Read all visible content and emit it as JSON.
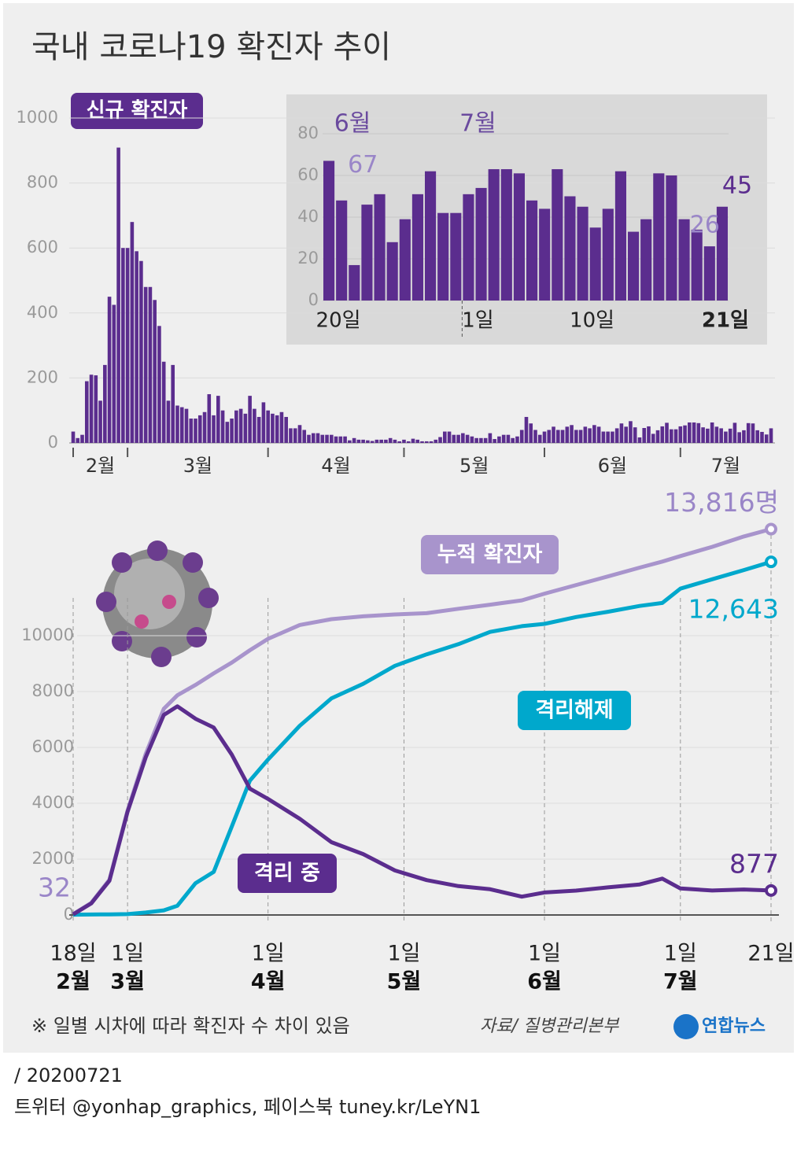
{
  "title": "국내 코로나19 확진자 추이",
  "note": "※ 일별 시차에 따라 확진자 수 차이 있음",
  "source": "자료/ 질병관리본부",
  "logo": "연합뉴스",
  "date": "/ 20200721",
  "footer": "트위터 @yonhap_graphics, 페이스북 tuney.kr/LeYN1",
  "chart_data": [
    {
      "type": "bar",
      "title": "신규 확진자",
      "color": "#5b2d8e",
      "categories": [
        "02-18",
        "02-19",
        "02-20",
        "02-21",
        "02-22",
        "02-23",
        "02-24",
        "02-25",
        "02-26",
        "02-27",
        "02-28",
        "02-29",
        "03-01",
        "03-02",
        "03-03",
        "03-04",
        "03-05",
        "03-06",
        "03-07",
        "03-08",
        "03-09",
        "03-10",
        "03-11",
        "03-12",
        "03-13",
        "03-14",
        "03-15",
        "03-16",
        "03-17",
        "03-18",
        "03-19",
        "03-20",
        "03-21",
        "03-22",
        "03-23",
        "03-24",
        "03-25",
        "03-26",
        "03-27",
        "03-28",
        "03-29",
        "03-30",
        "03-31",
        "04-01",
        "04-02",
        "04-03",
        "04-04",
        "04-05",
        "04-06",
        "04-07",
        "04-08",
        "04-09",
        "04-10",
        "04-11",
        "04-12",
        "04-13",
        "04-14",
        "04-15",
        "04-16",
        "04-17",
        "04-18",
        "04-19",
        "04-20",
        "04-21",
        "04-22",
        "04-23",
        "04-24",
        "04-25",
        "04-26",
        "04-27",
        "04-28",
        "04-29",
        "04-30",
        "05-01",
        "05-02",
        "05-03",
        "05-04",
        "05-05",
        "05-06",
        "05-07",
        "05-08",
        "05-09",
        "05-10",
        "05-11",
        "05-12",
        "05-13",
        "05-14",
        "05-15",
        "05-16",
        "05-17",
        "05-18",
        "05-19",
        "05-20",
        "05-21",
        "05-22",
        "05-23",
        "05-24",
        "05-25",
        "05-26",
        "05-27",
        "05-28",
        "05-29",
        "05-30",
        "05-31",
        "06-01",
        "06-02",
        "06-03",
        "06-04",
        "06-05",
        "06-06",
        "06-07",
        "06-08",
        "06-09",
        "06-10",
        "06-11",
        "06-12",
        "06-13",
        "06-14",
        "06-15",
        "06-16",
        "06-17",
        "06-18",
        "06-19",
        "06-20",
        "06-21",
        "06-22",
        "06-23",
        "06-24",
        "06-25",
        "06-26",
        "06-27",
        "06-28",
        "06-29",
        "06-30",
        "07-01",
        "07-02",
        "07-03",
        "07-04",
        "07-05",
        "07-06",
        "07-07",
        "07-08",
        "07-09",
        "07-10",
        "07-11",
        "07-12",
        "07-13",
        "07-14",
        "07-15",
        "07-16",
        "07-17",
        "07-18",
        "07-19",
        "07-20",
        "07-21"
      ],
      "values": [
        35,
        15,
        25,
        190,
        210,
        208,
        130,
        240,
        450,
        425,
        909,
        600,
        600,
        680,
        590,
        560,
        480,
        480,
        440,
        360,
        250,
        130,
        240,
        115,
        110,
        105,
        75,
        75,
        85,
        95,
        150,
        85,
        145,
        100,
        65,
        75,
        100,
        105,
        90,
        145,
        105,
        80,
        125,
        100,
        90,
        85,
        95,
        80,
        45,
        45,
        55,
        40,
        25,
        30,
        30,
        25,
        25,
        25,
        20,
        20,
        20,
        8,
        15,
        10,
        10,
        8,
        6,
        10,
        10,
        10,
        15,
        10,
        5,
        10,
        5,
        13,
        10,
        5,
        5,
        5,
        10,
        18,
        35,
        35,
        25,
        25,
        30,
        25,
        20,
        15,
        15,
        15,
        30,
        12,
        20,
        25,
        25,
        15,
        20,
        40,
        80,
        60,
        40,
        25,
        35,
        40,
        50,
        40,
        40,
        50,
        55,
        40,
        40,
        50,
        45,
        55,
        50,
        35,
        35,
        35,
        45,
        60,
        50,
        67,
        48,
        17,
        46,
        51,
        28,
        39,
        51,
        62,
        42,
        42,
        51,
        54,
        63,
        63,
        61,
        48,
        44,
        63,
        50,
        45,
        35,
        44,
        62,
        33,
        39,
        61,
        60,
        39,
        34,
        26,
        45
      ],
      "ylim": [
        0,
        1000
      ],
      "yticks": [
        0,
        200,
        400,
        600,
        800,
        1000
      ],
      "grid": true,
      "xlim": [
        "02-18",
        "07-21"
      ],
      "xticks": [
        "02-18",
        "03-01",
        "04-01",
        "05-01",
        "06-01",
        "07-01"
      ],
      "xtick_labels": [
        "2월",
        "3월",
        "4월",
        "5월",
        "6월",
        "7월"
      ]
    },
    {
      "type": "bar",
      "color": "#5b2d8e",
      "categories": [
        "06-20",
        "06-21",
        "06-22",
        "06-23",
        "06-24",
        "06-25",
        "06-26",
        "06-27",
        "06-28",
        "06-29",
        "06-30",
        "07-01",
        "07-02",
        "07-03",
        "07-04",
        "07-05",
        "07-06",
        "07-07",
        "07-08",
        "07-09",
        "07-10",
        "07-11",
        "07-12",
        "07-13",
        "07-14",
        "07-15",
        "07-16",
        "07-17",
        "07-18",
        "07-19",
        "07-20",
        "07-21"
      ],
      "values": [
        67,
        48,
        17,
        46,
        51,
        28,
        39,
        51,
        62,
        42,
        42,
        51,
        54,
        63,
        63,
        61,
        48,
        44,
        63,
        50,
        45,
        35,
        44,
        62,
        33,
        39,
        61,
        60,
        39,
        34,
        26,
        45
      ],
      "labelled": [
        0,
        30,
        31
      ],
      "ylim": [
        0,
        80
      ],
      "yticks": [
        0,
        20,
        40,
        60,
        80
      ],
      "xticks": [
        {
          "value": "06-20",
          "label": "20일"
        },
        {
          "value": "07-01",
          "label": "1일"
        },
        {
          "value": "07-10",
          "label": "10일"
        },
        {
          "value": "07-21",
          "label": "21일"
        }
      ],
      "month_labels": [
        {
          "value": "06-20",
          "label": "6월"
        },
        {
          "value": "07-01",
          "label": "7월"
        }
      ]
    },
    {
      "type": "line",
      "x": [
        "02-18",
        "02-22",
        "02-26",
        "03-01",
        "03-05",
        "03-09",
        "03-12",
        "03-16",
        "03-20",
        "03-24",
        "03-28",
        "04-01",
        "04-08",
        "04-15",
        "04-22",
        "04-29",
        "05-06",
        "05-13",
        "05-20",
        "05-27",
        "06-01",
        "06-08",
        "06-15",
        "06-22",
        "06-27",
        "07-01",
        "07-08",
        "07-15",
        "07-21"
      ],
      "series": [
        {
          "name": "누적 확진자",
          "color": "#a894cc",
          "values": [
            32,
            433,
            1261,
            3736,
            5766,
            7382,
            7869,
            8236,
            8652,
            9037,
            9478,
            9887,
            10384,
            10591,
            10694,
            10761,
            10806,
            10962,
            11110,
            11265,
            11503,
            11814,
            12121,
            12438,
            12653,
            12850,
            13181,
            13551,
            13816
          ],
          "value_labels": [
            "32",
            null,
            null,
            null,
            null,
            null,
            null,
            null,
            null,
            null,
            null,
            null,
            null,
            null,
            null,
            null,
            null,
            null,
            null,
            null,
            null,
            null,
            null,
            null,
            null,
            null,
            null,
            null,
            "13,816명"
          ]
        },
        {
          "name": "격리해제",
          "color": "#00a8cc",
          "values": [
            12,
            16,
            22,
            30,
            88,
            166,
            333,
            1137,
            1540,
            3166,
            4811,
            5567,
            6776,
            7757,
            8277,
            8922,
            9333,
            9695,
            10135,
            10340,
            10422,
            10669,
            10856,
            11064,
            11172,
            11684,
            12020,
            12348,
            12643
          ],
          "value_labels": [
            null,
            null,
            null,
            null,
            null,
            null,
            null,
            null,
            null,
            null,
            null,
            null,
            null,
            null,
            null,
            null,
            null,
            null,
            null,
            null,
            null,
            null,
            null,
            null,
            null,
            null,
            null,
            null,
            "12,643"
          ]
        },
        {
          "name": "격리 중",
          "color": "#5b2d8e",
          "values": [
            20,
            415,
            1227,
            3692,
            5643,
            7163,
            7470,
            7024,
            6709,
            5740,
            4523,
            4155,
            3446,
            2605,
            2179,
            1593,
            1247,
            1033,
            922,
            656,
            807,
            873,
            988,
            1094,
            1300,
            950,
            876,
            914,
            877
          ],
          "value_labels": [
            null,
            null,
            null,
            null,
            null,
            null,
            null,
            null,
            null,
            null,
            null,
            null,
            null,
            null,
            null,
            null,
            null,
            null,
            null,
            null,
            null,
            null,
            null,
            null,
            null,
            null,
            null,
            null,
            "877"
          ]
        }
      ],
      "ylim": [
        0,
        14000
      ],
      "yticks": [
        0,
        2000,
        4000,
        6000,
        8000,
        10000
      ],
      "xlim": [
        "02-18",
        "07-21"
      ],
      "xticks": [
        {
          "value": "02-18",
          "label": "18일",
          "month": "2월"
        },
        {
          "value": "03-01",
          "label": "1일",
          "month": "3월"
        },
        {
          "value": "04-01",
          "label": "1일",
          "month": "4월"
        },
        {
          "value": "05-01",
          "label": "1일",
          "month": "5월"
        },
        {
          "value": "06-01",
          "label": "1일",
          "month": "6월"
        },
        {
          "value": "07-01",
          "label": "1일",
          "month": "7월"
        },
        {
          "value": "07-21",
          "label": "21일"
        }
      ]
    }
  ]
}
